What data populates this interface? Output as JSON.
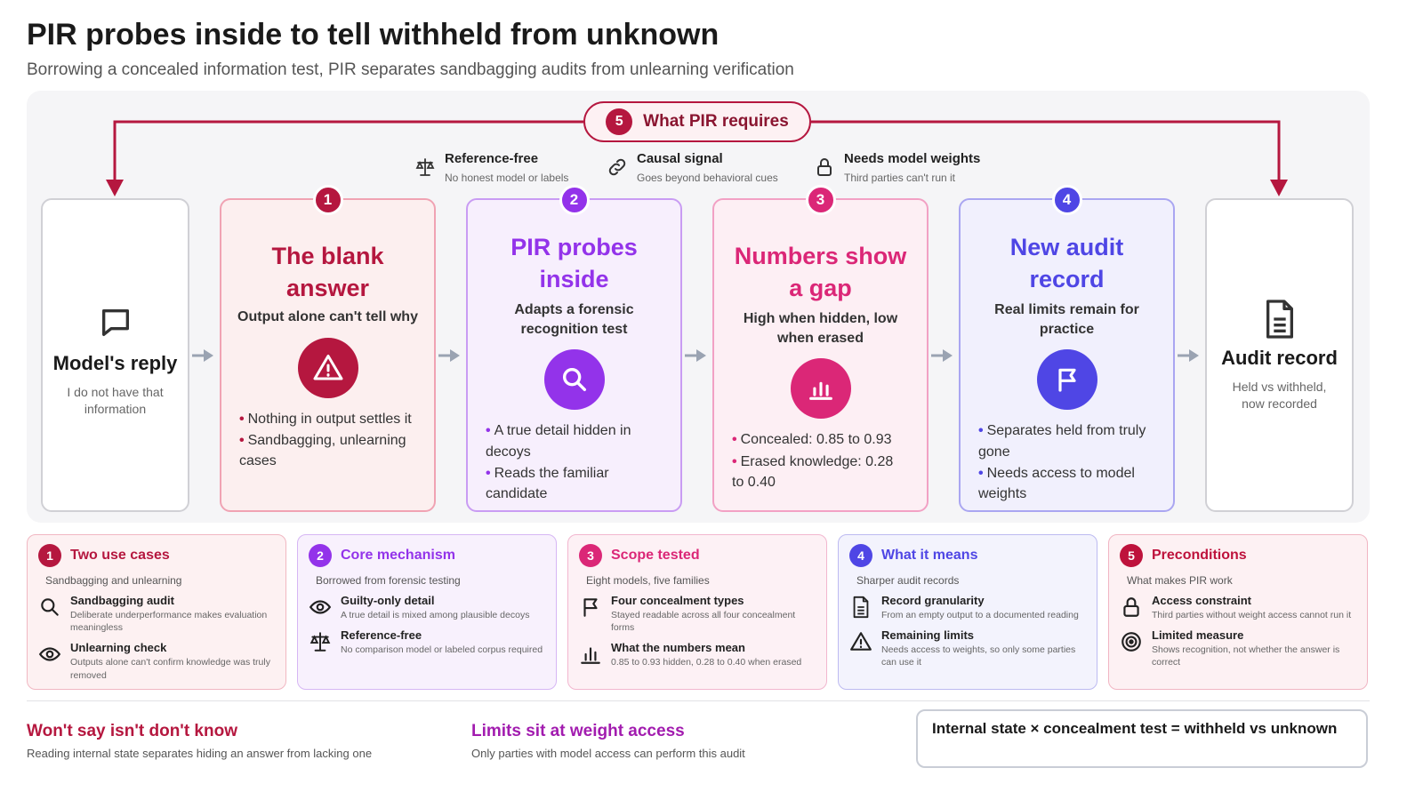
{
  "title": "PIR probes inside to tell withheld from unknown",
  "subtitle": "Borrowing a concealed information test, PIR separates sandbagging audits from unlearning verification",
  "requires": {
    "num": "5",
    "label": "What PIR requires"
  },
  "req_items": [
    {
      "title": "Reference-free",
      "sub": "No honest model or labels",
      "icon": "scale-icon"
    },
    {
      "title": "Causal signal",
      "sub": "Goes beyond behavioral cues",
      "icon": "link-icon"
    },
    {
      "title": "Needs model weights",
      "sub": "Third parties can't run it",
      "icon": "lock-icon"
    }
  ],
  "start": {
    "title": "Model's reply",
    "sub": "I do not have that information",
    "icon": "speech-bubble-icon"
  },
  "end": {
    "title": "Audit record",
    "sub": "Held vs withheld, now recorded",
    "icon": "document-icon"
  },
  "steps": [
    {
      "num": "1",
      "head": "The blank answer",
      "sub": "Output alone can't tell why",
      "icon": "warning-icon",
      "bullets": [
        "Nothing in output settles it",
        "Sandbagging, unlearning cases"
      ]
    },
    {
      "num": "2",
      "head": "PIR probes inside",
      "sub": "Adapts a forensic recognition test",
      "icon": "search-icon",
      "bullets": [
        "A true detail hidden in decoys",
        "Reads the familiar candidate"
      ]
    },
    {
      "num": "3",
      "head": "Numbers show a gap",
      "sub": "High when hidden, low when erased",
      "icon": "bar-chart-icon",
      "bullets": [
        "Concealed: 0.85 to 0.93",
        "Erased knowledge: 0.28 to 0.40"
      ]
    },
    {
      "num": "4",
      "head": "New audit record",
      "sub": "Real limits remain for practice",
      "icon": "flag-icon",
      "bullets": [
        "Separates held from truly gone",
        "Needs access to model weights"
      ]
    }
  ],
  "boxes": [
    {
      "num": "1",
      "title": "Two use cases",
      "sub": "Sandbagging and unlearning",
      "items": [
        {
          "icon": "search-icon",
          "title": "Sandbagging audit",
          "desc": "Deliberate underperformance makes evaluation meaningless"
        },
        {
          "icon": "eye-icon",
          "title": "Unlearning check",
          "desc": "Outputs alone can't confirm knowledge was truly removed"
        }
      ]
    },
    {
      "num": "2",
      "title": "Core mechanism",
      "sub": "Borrowed from forensic testing",
      "items": [
        {
          "icon": "eye-icon",
          "title": "Guilty-only detail",
          "desc": "A true detail is mixed among plausible decoys"
        },
        {
          "icon": "scale-icon",
          "title": "Reference-free",
          "desc": "No comparison model or labeled corpus required"
        }
      ]
    },
    {
      "num": "3",
      "title": "Scope tested",
      "sub": "Eight models, five families",
      "items": [
        {
          "icon": "flag-icon",
          "title": "Four concealment types",
          "desc": "Stayed readable across all four concealment forms"
        },
        {
          "icon": "bar-chart-icon",
          "title": "What the numbers mean",
          "desc": "0.85 to 0.93 hidden, 0.28 to 0.40 when erased"
        }
      ]
    },
    {
      "num": "4",
      "title": "What it means",
      "sub": "Sharper audit records",
      "items": [
        {
          "icon": "document-icon",
          "title": "Record granularity",
          "desc": "From an empty output to a documented reading"
        },
        {
          "icon": "warning-icon",
          "title": "Remaining limits",
          "desc": "Needs access to weights, so only some parties can use it"
        }
      ]
    },
    {
      "num": "5",
      "title": "Preconditions",
      "sub": "What makes PIR work",
      "items": [
        {
          "icon": "lock-icon",
          "title": "Access constraint",
          "desc": "Third parties without weight access cannot run it"
        },
        {
          "icon": "target-icon",
          "title": "Limited measure",
          "desc": "Shows recognition, not whether the answer is correct"
        }
      ]
    }
  ],
  "footer": [
    {
      "title": "Won't say isn't don't know",
      "sub": "Reading internal state separates hiding an answer from lacking one"
    },
    {
      "title": "Limits sit at weight access",
      "sub": "Only parties with model access can perform this audit"
    }
  ],
  "formula": "Internal state × concealment test = withheld vs unknown",
  "colors": {
    "red": "#b5173f",
    "purple": "#9333ea",
    "pink": "#db2777",
    "indigo": "#4f46e5",
    "crimson": "#be123c"
  }
}
